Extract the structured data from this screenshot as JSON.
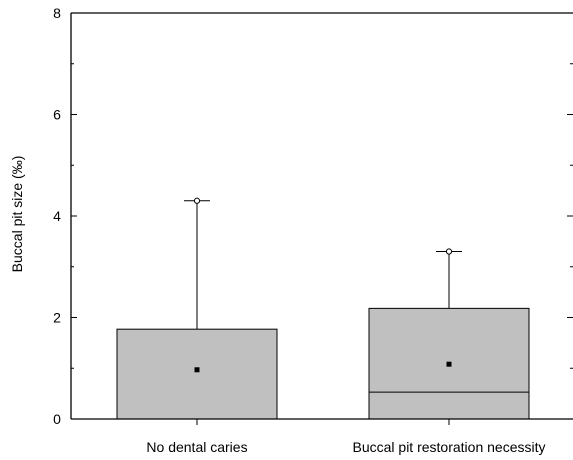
{
  "chart_data": {
    "type": "box",
    "ylabel": "Buccal pit size (‰)",
    "ylim": [
      0,
      8
    ],
    "yticks": [
      "0",
      "2",
      "4",
      "6",
      "8"
    ],
    "categories": [
      "No dental caries",
      "Buccal pit restoration necessity"
    ],
    "boxes": [
      {
        "category": "No dental caries",
        "q1": 0,
        "median": 0,
        "q3": 1.77,
        "mean": 0.97,
        "whisker_low": 0,
        "whisker_high": 4.3,
        "outliers": [
          4.3
        ]
      },
      {
        "category": "Buccal pit restoration necessity",
        "q1": 0,
        "median": 0.53,
        "q3": 2.18,
        "mean": 1.08,
        "whisker_low": 0,
        "whisker_high": 3.3,
        "outliers": [
          3.3
        ]
      }
    ],
    "box_color": "#c0c0c0",
    "grid": false
  }
}
